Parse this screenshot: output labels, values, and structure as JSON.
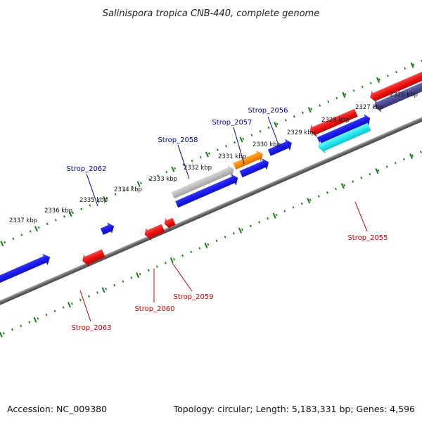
{
  "title": "Salinispora tropica CNB-440, complete genome",
  "footer": {
    "accession": "Accession: NC_009380",
    "stats": "Topology: circular; Length: 5,183,331 bp; Genes: 4,596"
  },
  "tick_labels": [
    "2326 kbp",
    "2327 kbp",
    "2328 kbp",
    "2329 kbp",
    "2330 kbp",
    "2331 kbp",
    "2332 kbp",
    "2333 kbp",
    "2334 kbp",
    "2335 kbp",
    "2336 kbp",
    "2337 kbp"
  ],
  "gene_labels": {
    "strop_2056": "Strop_2056",
    "strop_2057": "Strop_2057",
    "strop_2058": "Strop_2058",
    "strop_2062": "Strop_2062",
    "strop_2055": "Strop_2055",
    "strop_2059": "Strop_2059",
    "strop_2060": "Strop_2060",
    "strop_2063": "Strop_2063"
  },
  "colors": {
    "forward_blue": "#1a1aee",
    "reverse_red": "#ee1111",
    "orange": "#ff8c00",
    "gray": "#b8b8b8",
    "cyan": "#22e8ee",
    "slate": "#4a4a90",
    "backbone": "#777777",
    "ticks": "#1a7a1a",
    "label_blue": "#0000aa",
    "label_red": "#cc0000"
  }
}
